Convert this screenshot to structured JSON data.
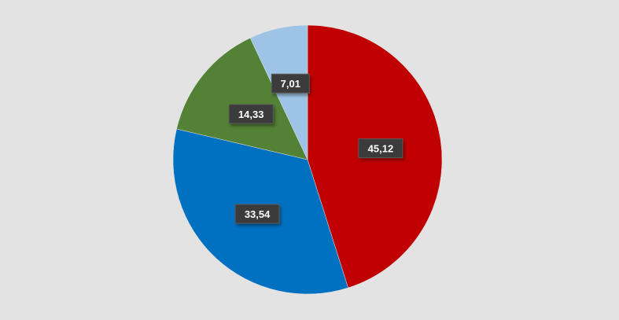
{
  "chart_data": {
    "type": "pie",
    "title": "",
    "start_angle_deg": 0,
    "direction": "clockwise",
    "slices": [
      {
        "value": 45.12,
        "label": "45,12",
        "color": "#c00000"
      },
      {
        "value": 33.54,
        "label": "33,54",
        "color": "#0070c0"
      },
      {
        "value": 14.33,
        "label": "14,33",
        "color": "#538135"
      },
      {
        "value": 7.01,
        "label": "7,01",
        "color": "#9dc3e6"
      }
    ],
    "legend": "none",
    "background_color": "#e3e3e3"
  }
}
